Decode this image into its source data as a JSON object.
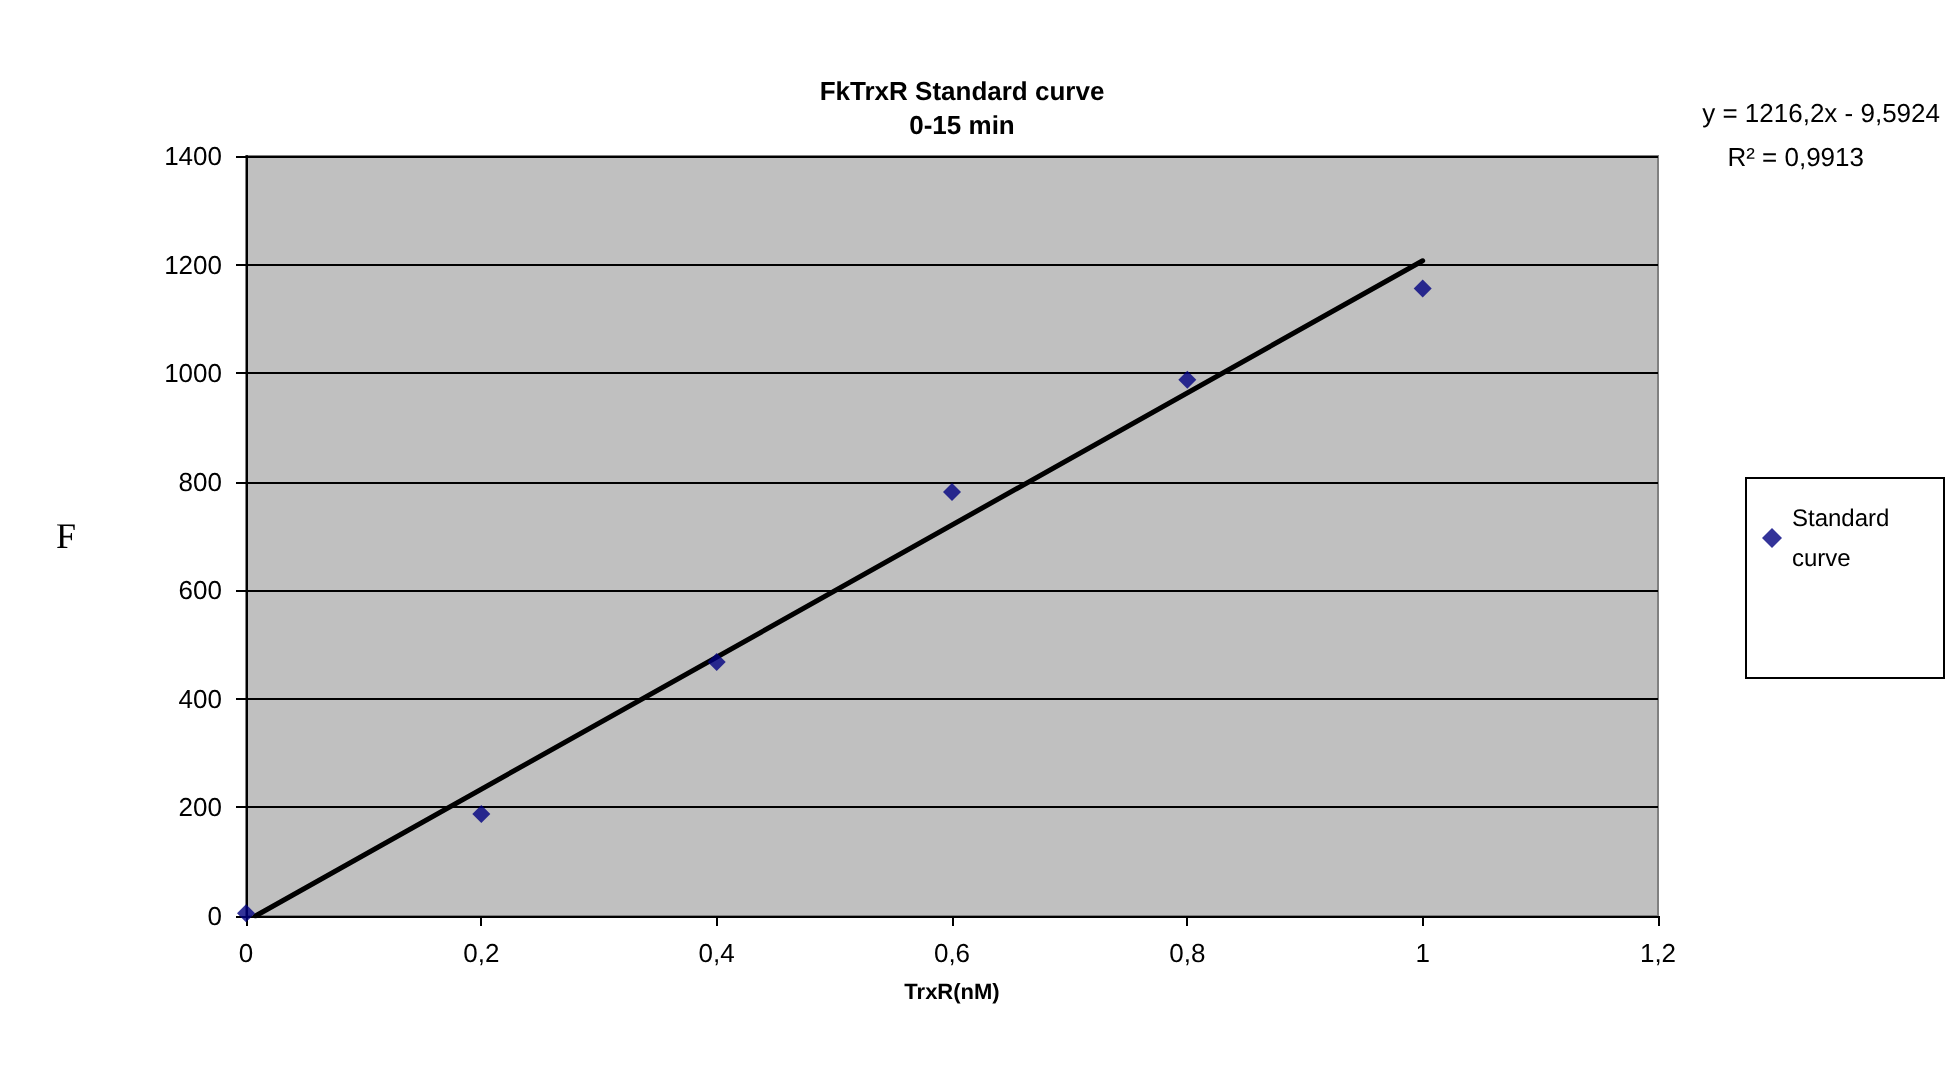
{
  "chart_data": {
    "type": "scatter",
    "title": "FkTrxR Standard curve",
    "subtitle": "0-15 min",
    "xlabel": "TrxR(nM)",
    "ylabel": "F",
    "x": [
      0,
      0.2,
      0.4,
      0.6,
      0.8,
      1
    ],
    "series": [
      {
        "name": "Standard curve",
        "color": "#000080",
        "values": [
          5,
          188,
          468,
          781,
          988,
          1156
        ],
        "marker": "diamond"
      },
      {
        "type": "line",
        "color": "#000000",
        "x": [
          0.008,
          1
        ],
        "values": [
          0,
          1207
        ],
        "marker": "none",
        "line_style": "solid"
      }
    ],
    "xlim": [
      0,
      1.2
    ],
    "ylim": [
      0,
      1400
    ],
    "xticks": [
      {
        "value": 0,
        "label": "0"
      },
      {
        "value": 0.2,
        "label": "0,2"
      },
      {
        "value": 0.4,
        "label": "0,4"
      },
      {
        "value": 0.6,
        "label": "0,6"
      },
      {
        "value": 0.8,
        "label": "0,8"
      },
      {
        "value": 1,
        "label": "1"
      },
      {
        "value": 1.2,
        "label": "1,2"
      }
    ],
    "yticks": [
      0,
      200,
      400,
      600,
      800,
      1000,
      1200,
      1400
    ],
    "annotations": [
      "y = 1216,2x - 9,5924",
      "R² = 0,9913"
    ],
    "grid": "y",
    "legend": "right"
  }
}
